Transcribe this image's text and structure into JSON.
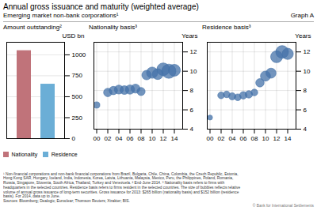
{
  "title": "Annual gross issuance and maturity (weighted average)",
  "subtitle": "Emerging market non-bank corporations¹",
  "annotations": [
    "Graph A",
    "¹ Non-financial corporations and non-bank financial corporations from Brazil, Bulgaria, Chile, China, Colombia, the Czech Republic, Estonia,",
    "Hong Kong SAR, Hungary, Iceland, India, Indonesia, Korea, Latvia, Lithuania, Malaysia, Mexico, Peru, the Philippines, Poland, Romania,",
    "Russia, Singapore, Slovenia, South Africa, Thailand, Turkey and Venezuela.   ² End-June 2014.   ³ Nationality basis refers to firms with",
    "headquarters in the selected countries. Residence basis refers to firms resident in the selected countries. The size of bubbles reflects relative",
    "volume of annual gross issuance of long-term securities. Gross issuance for 2013: $265 billion (nationality basis) and $152 billion (residence",
    "basis). For 2014, data up to June.",
    "Sources: Bloomberg; Dealogic; Euroclear; Thomson Reuters; Xtrakter; BIS.",
    "© Bank for International Settlements"
  ],
  "chart_data": [
    {
      "type": "bar",
      "title": "Amount outstanding²",
      "categories": [
        "Nationality",
        "Residence"
      ],
      "values": [
        1050,
        650
      ],
      "colors": [
        "#c0737a",
        "#6baed6"
      ],
      "ylabel": "USD bn",
      "ylim": [
        0,
        1150
      ],
      "yticks": [
        0,
        250,
        500,
        750,
        1000
      ],
      "grid": true,
      "legend": "bottom",
      "tick_labels": "y"
    },
    {
      "type": "scatter",
      "title": "Nationality basis³",
      "x": [
        2000,
        2002,
        2003,
        2004,
        2005,
        2006,
        2007,
        2008,
        2009,
        2010,
        2011,
        2012,
        2013,
        2014
      ],
      "values": [
        6.5,
        7.8,
        8.0,
        8.1,
        8.05,
        8.1,
        8.2,
        7.9,
        9.6,
        9.85,
        9.7,
        10.2,
        10.0,
        10.1
      ],
      "sizes": [
        8,
        14,
        14,
        16,
        15,
        17,
        16,
        13,
        18,
        25,
        23,
        32,
        40,
        28
      ],
      "color": "#4472a8",
      "ylabel": "Years",
      "xlim": [
        1999.5,
        2015.5
      ],
      "xticks": [
        {
          "value": 2000,
          "label": "00"
        },
        {
          "value": 2002,
          "label": "02"
        },
        {
          "value": 2004,
          "label": "04"
        },
        {
          "value": 2006,
          "label": "06"
        },
        {
          "value": 2008,
          "label": "08"
        },
        {
          "value": 2010,
          "label": "10"
        },
        {
          "value": 2012,
          "label": "12"
        },
        {
          "value": 2014,
          "label": "14"
        }
      ],
      "ylim": [
        4,
        13
      ],
      "yticks": [
        4,
        6,
        8,
        10,
        12
      ],
      "grid": true
    },
    {
      "type": "scatter",
      "title": "Residence basis³",
      "x": [
        2000,
        2002,
        2003,
        2004,
        2005,
        2006,
        2007,
        2008,
        2009,
        2010,
        2011,
        2012,
        2013,
        2014
      ],
      "values": [
        5.2,
        7.5,
        7.6,
        7.4,
        7.3,
        7.5,
        7.6,
        7.8,
        8.8,
        9.5,
        9.8,
        11.5,
        12.0,
        11.8
      ],
      "sizes": [
        5,
        9,
        9,
        10,
        9,
        11,
        11,
        9,
        14,
        20,
        20,
        28,
        32,
        25
      ],
      "color": "#4472a8",
      "ylabel": "Years",
      "xlim": [
        1999.5,
        2015.5
      ],
      "xticks": [
        {
          "value": 2000,
          "label": "00"
        },
        {
          "value": 2002,
          "label": "02"
        },
        {
          "value": 2004,
          "label": "04"
        },
        {
          "value": 2006,
          "label": "06"
        },
        {
          "value": 2008,
          "label": "08"
        },
        {
          "value": 2010,
          "label": "10"
        },
        {
          "value": 2012,
          "label": "12"
        },
        {
          "value": 2014,
          "label": "14"
        }
      ],
      "ylim": [
        4,
        13
      ],
      "yticks": [
        4,
        6,
        8,
        10,
        12
      ],
      "grid": true
    }
  ]
}
